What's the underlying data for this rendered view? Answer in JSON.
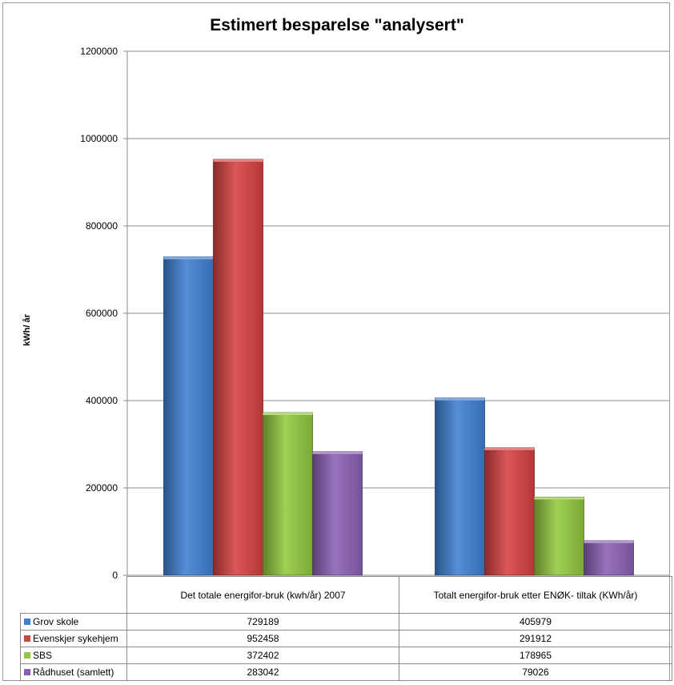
{
  "chart_data": {
    "type": "bar",
    "title": "Estimert besparelse \"analysert\"",
    "ylabel": "kWh/ år",
    "xlabel": "",
    "ylim": [
      0,
      1200000
    ],
    "yticks": [
      "0",
      "200000",
      "400000",
      "600000",
      "800000",
      "1000000",
      "1200000"
    ],
    "grid": true,
    "legend": "data-table",
    "categories": [
      "Det totale energifor-bruk (kwh/år) 2007",
      "Totalt energifor-bruk etter ENØK- tiltak (KWh/år)"
    ],
    "series": [
      {
        "name": "Grov skole",
        "values": [
          729189,
          405979
        ],
        "color": "#3f7fd1"
      },
      {
        "name": "Evenskjer sykehjem",
        "values": [
          952458,
          291912
        ],
        "color": "#d64040"
      },
      {
        "name": "SBS",
        "values": [
          372402,
          178965
        ],
        "color": "#92c83e"
      },
      {
        "name": "Rådhuset (samlett)",
        "values": [
          283042,
          79026
        ],
        "color": "#8a60b4"
      }
    ]
  }
}
